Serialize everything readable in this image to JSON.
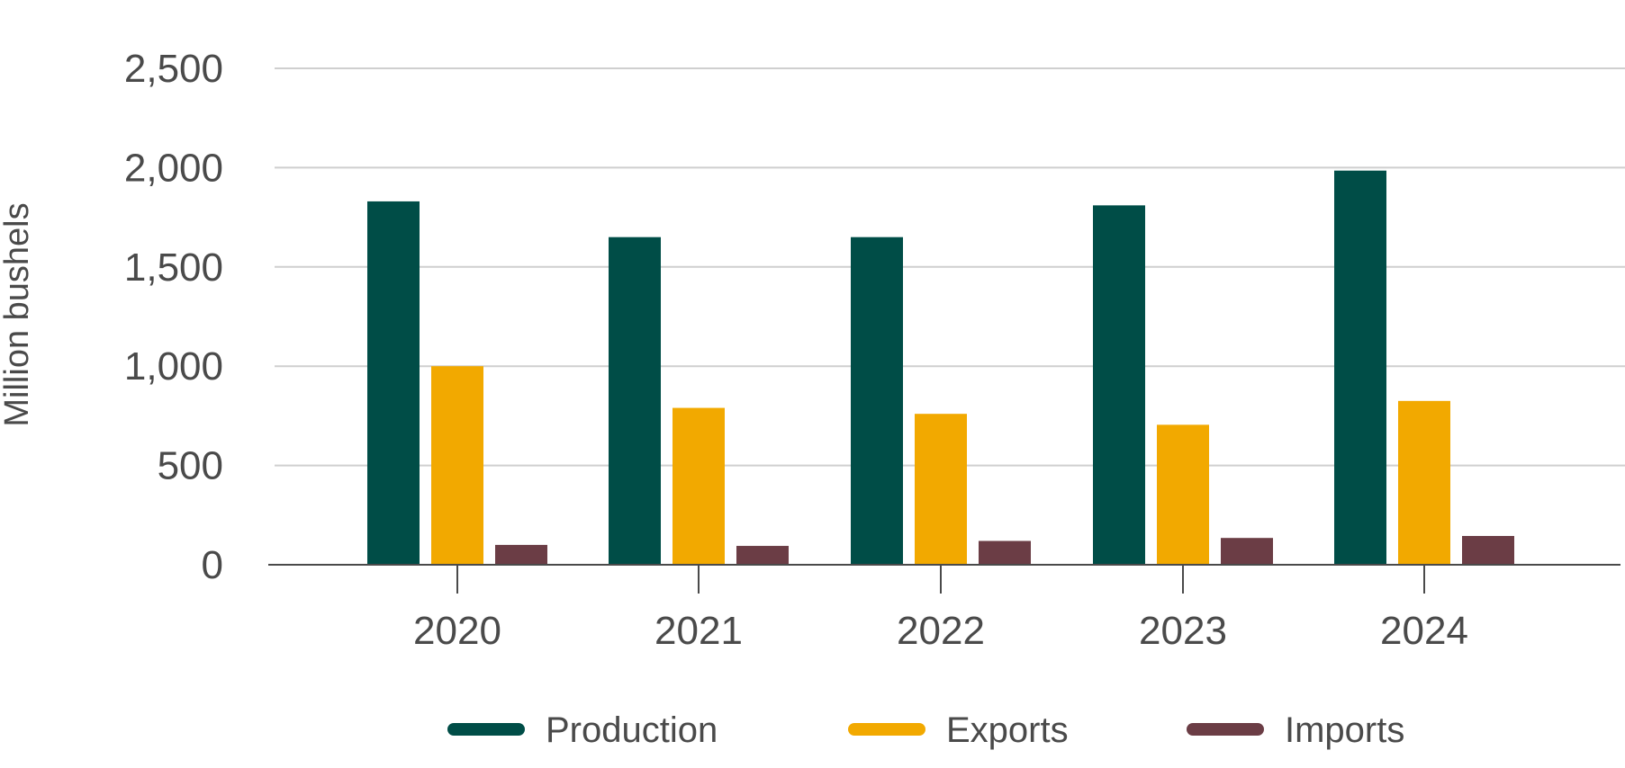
{
  "chart_data": {
    "type": "bar",
    "title": "",
    "xlabel": "",
    "ylabel": "Million bushels",
    "categories": [
      "2020",
      "2021",
      "2022",
      "2023",
      "2024"
    ],
    "ylim": [
      0,
      2500
    ],
    "yticks": [
      0,
      500,
      1000,
      1500,
      2000,
      2500
    ],
    "ytick_labels": [
      "0",
      "500",
      "1,000",
      "1,500",
      "2,000",
      "2,500"
    ],
    "grid": true,
    "legend_position": "bottom",
    "series": [
      {
        "name": "Production",
        "color": "#004d47",
        "values": [
          1830,
          1650,
          1650,
          1810,
          1985
        ]
      },
      {
        "name": "Exports",
        "color": "#f2a900",
        "values": [
          1000,
          790,
          760,
          705,
          825
        ]
      },
      {
        "name": "Imports",
        "color": "#6b3d45",
        "values": [
          100,
          95,
          120,
          135,
          145
        ]
      }
    ]
  }
}
